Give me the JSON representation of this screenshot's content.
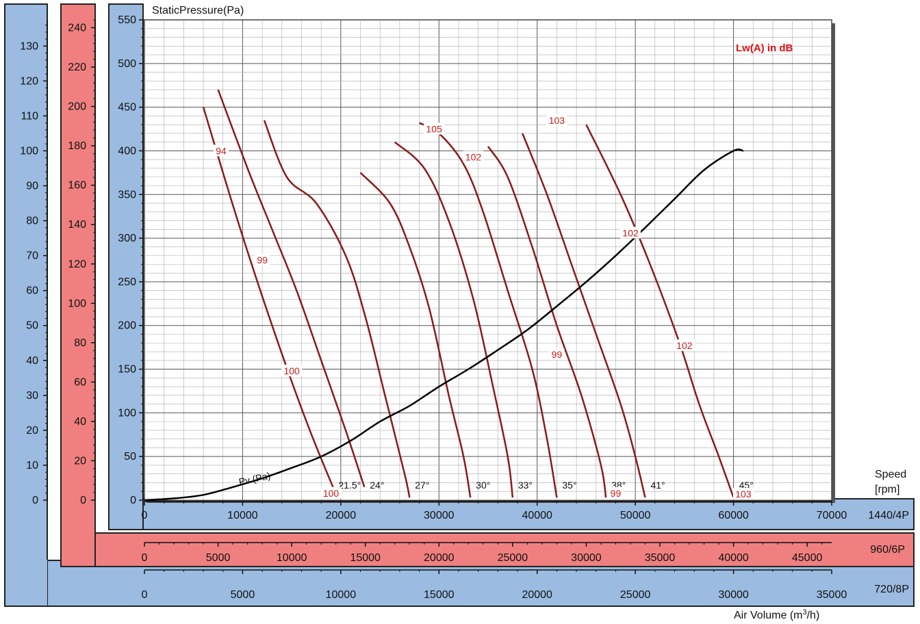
{
  "chart_data": {
    "type": "line",
    "title": "",
    "ylabel": "StaticPressure(Pa)",
    "xlabel": "Air Volume (m³/h)",
    "legend_note": "Lw(A) in dB",
    "speed_label_1": "Speed",
    "speed_label_2": "[rpm]",
    "x_axes": [
      {
        "name": "1440/4P",
        "range": [
          0,
          70000
        ],
        "ticks": [
          0,
          10000,
          20000,
          30000,
          40000,
          50000,
          60000,
          70000
        ],
        "ticks_text": [
          "0",
          "10000",
          "20000",
          "30000",
          "40000",
          "50000",
          "60000",
          "70000"
        ]
      },
      {
        "name": "960/6P",
        "range": [
          0,
          46667
        ],
        "ticks": [
          0,
          5000,
          10000,
          15000,
          20000,
          25000,
          30000,
          35000,
          40000,
          45000
        ],
        "ticks_text": [
          "0",
          "5000",
          "10000",
          "15000",
          "20000",
          "25000",
          "30000",
          "35000",
          "40000",
          "45000"
        ]
      },
      {
        "name": "720/8P",
        "range": [
          0,
          35000
        ],
        "ticks": [
          0,
          5000,
          10000,
          15000,
          20000,
          25000,
          30000,
          35000
        ],
        "ticks_text": [
          "0",
          "5000",
          "10000",
          "15000",
          "20000",
          "25000",
          "30000",
          "35000"
        ]
      }
    ],
    "y_axes": [
      {
        "name": "1440/4P",
        "range": [
          0,
          550
        ],
        "ticks": [
          0,
          50,
          100,
          150,
          200,
          250,
          300,
          350,
          400,
          450,
          500,
          550
        ],
        "ticks_text": [
          "0",
          "50",
          "100",
          "150",
          "200",
          "250",
          "300",
          "350",
          "400",
          "450",
          "500",
          "550"
        ]
      },
      {
        "name": "960/6P",
        "range": [
          0,
          244
        ],
        "ticks": [
          0,
          20,
          40,
          60,
          80,
          100,
          120,
          140,
          160,
          180,
          200,
          220,
          240
        ],
        "ticks_text": [
          "0",
          "20",
          "40",
          "60",
          "80",
          "100",
          "120",
          "140",
          "160",
          "180",
          "200",
          "220",
          "240"
        ]
      },
      {
        "name": "720/8P",
        "range": [
          0,
          137.5
        ],
        "ticks": [
          0,
          10,
          20,
          30,
          40,
          50,
          60,
          70,
          80,
          90,
          100,
          110,
          120,
          130
        ],
        "ticks_text": [
          "0",
          "10",
          "20",
          "30",
          "40",
          "50",
          "60",
          "70",
          "80",
          "90",
          "100",
          "110",
          "120",
          "130"
        ]
      }
    ],
    "grid": true,
    "series": [
      {
        "name": "21.5°",
        "points": [
          [
            6000,
            450
          ],
          [
            9500,
            320
          ],
          [
            13000,
            200
          ],
          [
            16500,
            90
          ],
          [
            19200,
            15
          ]
        ]
      },
      {
        "name": "24°",
        "points": [
          [
            7500,
            470
          ],
          [
            10500,
            380
          ],
          [
            13000,
            310
          ],
          [
            15500,
            240
          ],
          [
            18000,
            160
          ],
          [
            20500,
            80
          ],
          [
            22400,
            15
          ]
        ]
      },
      {
        "name": "27°",
        "points": [
          [
            12200,
            435
          ],
          [
            14500,
            370
          ],
          [
            17500,
            340
          ],
          [
            20500,
            280
          ],
          [
            22500,
            210
          ],
          [
            24500,
            120
          ],
          [
            26500,
            30
          ],
          [
            27000,
            3
          ]
        ]
      },
      {
        "name": "30°",
        "points": [
          [
            22000,
            375
          ],
          [
            25000,
            340
          ],
          [
            27000,
            290
          ],
          [
            29000,
            220
          ],
          [
            31000,
            120
          ],
          [
            32500,
            50
          ],
          [
            33200,
            3
          ]
        ]
      },
      {
        "name": "33°",
        "points": [
          [
            25500,
            410
          ],
          [
            28500,
            380
          ],
          [
            31000,
            320
          ],
          [
            33500,
            230
          ],
          [
            35500,
            130
          ],
          [
            37000,
            50
          ],
          [
            37500,
            3
          ]
        ]
      },
      {
        "name": "35°",
        "points": [
          [
            28000,
            432
          ],
          [
            30000,
            420
          ],
          [
            32500,
            385
          ],
          [
            34500,
            330
          ],
          [
            37000,
            240
          ],
          [
            39500,
            150
          ],
          [
            41000,
            70
          ],
          [
            42000,
            3
          ]
        ]
      },
      {
        "name": "38°",
        "points": [
          [
            35000,
            405
          ],
          [
            37000,
            370
          ],
          [
            39500,
            290
          ],
          [
            42000,
            200
          ],
          [
            44500,
            120
          ],
          [
            46500,
            40
          ],
          [
            47000,
            3
          ]
        ]
      },
      {
        "name": "41°",
        "points": [
          [
            38500,
            420
          ],
          [
            41000,
            350
          ],
          [
            43500,
            270
          ],
          [
            46000,
            190
          ],
          [
            48500,
            110
          ],
          [
            50000,
            50
          ],
          [
            51000,
            3
          ]
        ]
      },
      {
        "name": "45°",
        "points": [
          [
            45000,
            430
          ],
          [
            48500,
            350
          ],
          [
            51500,
            270
          ],
          [
            54500,
            180
          ],
          [
            56500,
            110
          ],
          [
            58500,
            50
          ],
          [
            60000,
            3
          ]
        ]
      }
    ],
    "series_labels": [
      "21.5°",
      "24°",
      "27°",
      "30°",
      "33°",
      "35°",
      "38°",
      "41°",
      "45°"
    ],
    "sound_labels": [
      {
        "text": "94",
        "x": 7800,
        "y": 400
      },
      {
        "text": "99",
        "x": 12000,
        "y": 275
      },
      {
        "text": "100",
        "x": 15000,
        "y": 148
      },
      {
        "text": "100",
        "x": 19000,
        "y": 8
      },
      {
        "text": "105",
        "x": 29500,
        "y": 425
      },
      {
        "text": "102",
        "x": 33500,
        "y": 393
      },
      {
        "text": "103",
        "x": 42000,
        "y": 435
      },
      {
        "text": "102",
        "x": 49500,
        "y": 306
      },
      {
        "text": "99",
        "x": 42000,
        "y": 167
      },
      {
        "text": "102",
        "x": 55000,
        "y": 177
      },
      {
        "text": "99",
        "x": 48000,
        "y": 8
      },
      {
        "text": "103",
        "x": 61000,
        "y": 7
      }
    ],
    "system_curve": {
      "name": "Pv (Pa)",
      "points": [
        [
          0,
          0
        ],
        [
          3000,
          2
        ],
        [
          6000,
          6
        ],
        [
          9000,
          15
        ],
        [
          12000,
          25
        ],
        [
          15000,
          37
        ],
        [
          18000,
          50
        ],
        [
          21000,
          68
        ],
        [
          24000,
          90
        ],
        [
          27000,
          108
        ],
        [
          30000,
          130
        ],
        [
          33000,
          150
        ],
        [
          36000,
          172
        ],
        [
          39000,
          195
        ],
        [
          42000,
          222
        ],
        [
          45000,
          250
        ],
        [
          48000,
          280
        ],
        [
          51000,
          312
        ],
        [
          54000,
          345
        ],
        [
          57000,
          378
        ],
        [
          60000,
          400
        ],
        [
          61000,
          400
        ]
      ]
    }
  }
}
